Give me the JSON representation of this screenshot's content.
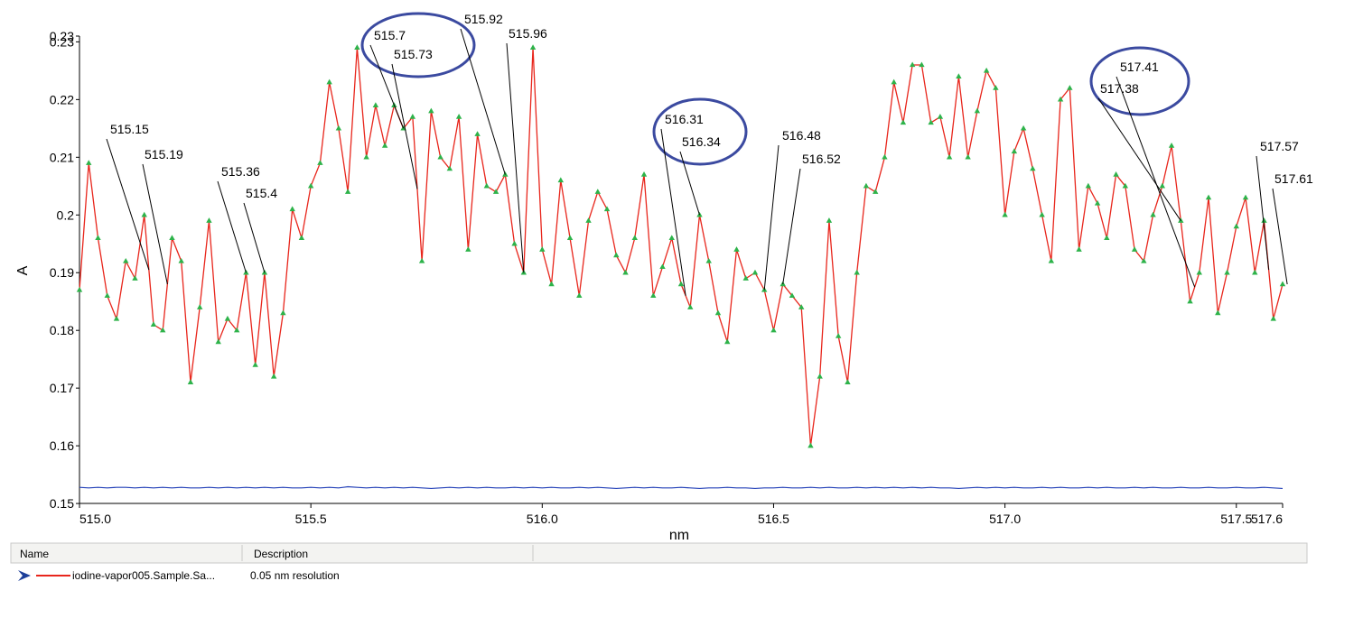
{
  "chart_data": {
    "type": "line",
    "x_label": "nm",
    "y_label": "A",
    "xlim": [
      515.0,
      517.6
    ],
    "xticks": [
      {
        "value": 515,
        "label": "515.0"
      },
      515.5,
      {
        "value": 516,
        "label": "516.0"
      },
      516.5,
      {
        "value": 517,
        "label": "517.0"
      },
      517.5,
      517.6
    ],
    "ylim": [
      0.1497,
      0.231
    ],
    "yticks": [
      0.15,
      0.16,
      0.17,
      0.18,
      0.19,
      0.2,
      0.21,
      0.22,
      0.23,
      {
        "value": 0.231,
        "label": "0.23"
      }
    ],
    "markers": true,
    "x": [
      515,
      515.02,
      515.04,
      515.06,
      515.08,
      515.1,
      515.12,
      515.14,
      515.16,
      515.18,
      515.2,
      515.22,
      515.24,
      515.26,
      515.28,
      515.3,
      515.32,
      515.34,
      515.36,
      515.38,
      515.4,
      515.42,
      515.44,
      515.46,
      515.48,
      515.5,
      515.52,
      515.54,
      515.56,
      515.58,
      515.6,
      515.62,
      515.64,
      515.66,
      515.68,
      515.7,
      515.72,
      515.74,
      515.76,
      515.78,
      515.8,
      515.82,
      515.84,
      515.86,
      515.88,
      515.9,
      515.92,
      515.94,
      515.96,
      515.98,
      516,
      516.02,
      516.04,
      516.06,
      516.08,
      516.1,
      516.12,
      516.14,
      516.16,
      516.18,
      516.2,
      516.22,
      516.24,
      516.26,
      516.28,
      516.3,
      516.32,
      516.34,
      516.36,
      516.38,
      516.4,
      516.42,
      516.44,
      516.46,
      516.48,
      516.5,
      516.52,
      516.54,
      516.56,
      516.58,
      516.6,
      516.62,
      516.64,
      516.66,
      516.68,
      516.7,
      516.72,
      516.74,
      516.76,
      516.78,
      516.8,
      516.82,
      516.84,
      516.86,
      516.88,
      516.9,
      516.92,
      516.94,
      516.96,
      516.98,
      517,
      517.02,
      517.04,
      517.06,
      517.08,
      517.1,
      517.12,
      517.14,
      517.16,
      517.18,
      517.2,
      517.22,
      517.24,
      517.26,
      517.28,
      517.3,
      517.32,
      517.34,
      517.36,
      517.38,
      517.4,
      517.42,
      517.44,
      517.46,
      517.48,
      517.5,
      517.52,
      517.54,
      517.56,
      517.58,
      517.6
    ],
    "series": [
      {
        "name": "iodine-vapor005.Sample.Sa...",
        "description": "0.05 nm resolution",
        "color": "#e8261c",
        "marker_color": "#2db34a",
        "values": [
          0.187,
          0.209,
          0.196,
          0.186,
          0.182,
          0.192,
          0.189,
          0.2,
          0.181,
          0.18,
          0.196,
          0.192,
          0.171,
          0.184,
          0.199,
          0.178,
          0.182,
          0.18,
          0.19,
          0.174,
          0.19,
          0.172,
          0.183,
          0.201,
          0.196,
          0.205,
          0.209,
          0.223,
          0.215,
          0.204,
          0.229,
          0.21,
          0.219,
          0.212,
          0.219,
          0.215,
          0.217,
          0.192,
          0.218,
          0.21,
          0.208,
          0.217,
          0.194,
          0.214,
          0.205,
          0.204,
          0.207,
          0.195,
          0.19,
          0.229,
          0.194,
          0.188,
          0.206,
          0.196,
          0.186,
          0.199,
          0.204,
          0.201,
          0.193,
          0.19,
          0.196,
          0.207,
          0.186,
          0.191,
          0.196,
          0.188,
          0.184,
          0.2,
          0.192,
          0.183,
          0.178,
          0.194,
          0.189,
          0.19,
          0.187,
          0.18,
          0.188,
          0.186,
          0.184,
          0.16,
          0.172,
          0.199,
          0.179,
          0.171,
          0.19,
          0.205,
          0.204,
          0.21,
          0.223,
          0.216,
          0.226,
          0.226,
          0.216,
          0.217,
          0.21,
          0.224,
          0.21,
          0.218,
          0.225,
          0.222,
          0.2,
          0.211,
          0.215,
          0.208,
          0.2,
          0.192,
          0.22,
          0.222,
          0.194,
          0.205,
          0.202,
          0.196,
          0.207,
          0.205,
          0.194,
          0.192,
          0.2,
          0.205,
          0.212,
          0.199,
          0.185,
          0.19,
          0.203,
          0.183,
          0.19,
          0.198,
          0.203,
          0.19,
          0.199,
          0.182,
          0.188
        ]
      },
      {
        "color": "#2340b8",
        "values": [
          0.1528,
          0.1527,
          0.1528,
          0.1527,
          0.1528,
          0.1528,
          0.1527,
          0.1528,
          0.1527,
          0.1528,
          0.1527,
          0.1528,
          0.1527,
          0.1527,
          0.1528,
          0.1527,
          0.1528,
          0.1527,
          0.1528,
          0.1527,
          0.1528,
          0.1527,
          0.1528,
          0.1527,
          0.1527,
          0.1528,
          0.1527,
          0.1528,
          0.1527,
          0.1529,
          0.1528,
          0.1527,
          0.1528,
          0.1527,
          0.1528,
          0.1527,
          0.1528,
          0.1527,
          0.1526,
          0.1527,
          0.1528,
          0.1527,
          0.1528,
          0.1527,
          0.1528,
          0.1527,
          0.1527,
          0.1528,
          0.1527,
          0.1528,
          0.1527,
          0.1528,
          0.1527,
          0.1527,
          0.1528,
          0.1527,
          0.1528,
          0.1527,
          0.1526,
          0.1527,
          0.1528,
          0.1527,
          0.1528,
          0.1527,
          0.1527,
          0.1528,
          0.1527,
          0.1526,
          0.1527,
          0.1527,
          0.1528,
          0.1527,
          0.1527,
          0.1526,
          0.1527,
          0.1527,
          0.1528,
          0.1527,
          0.1527,
          0.1528,
          0.1527,
          0.1528,
          0.1527,
          0.1527,
          0.1528,
          0.1527,
          0.1528,
          0.1527,
          0.1528,
          0.1527,
          0.1528,
          0.1527,
          0.1528,
          0.1527,
          0.1527,
          0.1526,
          0.1527,
          0.1528,
          0.1527,
          0.1528,
          0.1527,
          0.1528,
          0.1527,
          0.1527,
          0.1528,
          0.1527,
          0.1528,
          0.1527,
          0.1527,
          0.1528,
          0.1527,
          0.1528,
          0.1527,
          0.1527,
          0.1528,
          0.1527,
          0.1528,
          0.1527,
          0.1527,
          0.1528,
          0.1527,
          0.1527,
          0.1528,
          0.1527,
          0.1527,
          0.1528,
          0.1527,
          0.1527,
          0.1528,
          0.1527,
          0.1526
        ]
      }
    ],
    "annotations": [
      {
        "label": "515.15",
        "x": 515.15
      },
      {
        "label": "515.19",
        "x": 515.19
      },
      {
        "label": "515.36",
        "x": 515.36
      },
      {
        "label": "515.4",
        "x": 515.4
      },
      {
        "label": "515.7",
        "x": 515.7
      },
      {
        "label": "515.73",
        "x": 515.73
      },
      {
        "label": "515.92",
        "x": 515.92
      },
      {
        "label": "515.96",
        "x": 515.96
      },
      {
        "label": "516.31",
        "x": 516.31
      },
      {
        "label": "516.34",
        "x": 516.34
      },
      {
        "label": "516.48",
        "x": 516.48
      },
      {
        "label": "516.52",
        "x": 516.52
      },
      {
        "label": "517.41",
        "x": 517.41
      },
      {
        "label": "517.38",
        "x": 517.38
      },
      {
        "label": "517.57",
        "x": 517.57
      },
      {
        "label": "517.61",
        "x": 517.61
      }
    ],
    "legend": {
      "headers": [
        "Name",
        "Description"
      ]
    }
  }
}
